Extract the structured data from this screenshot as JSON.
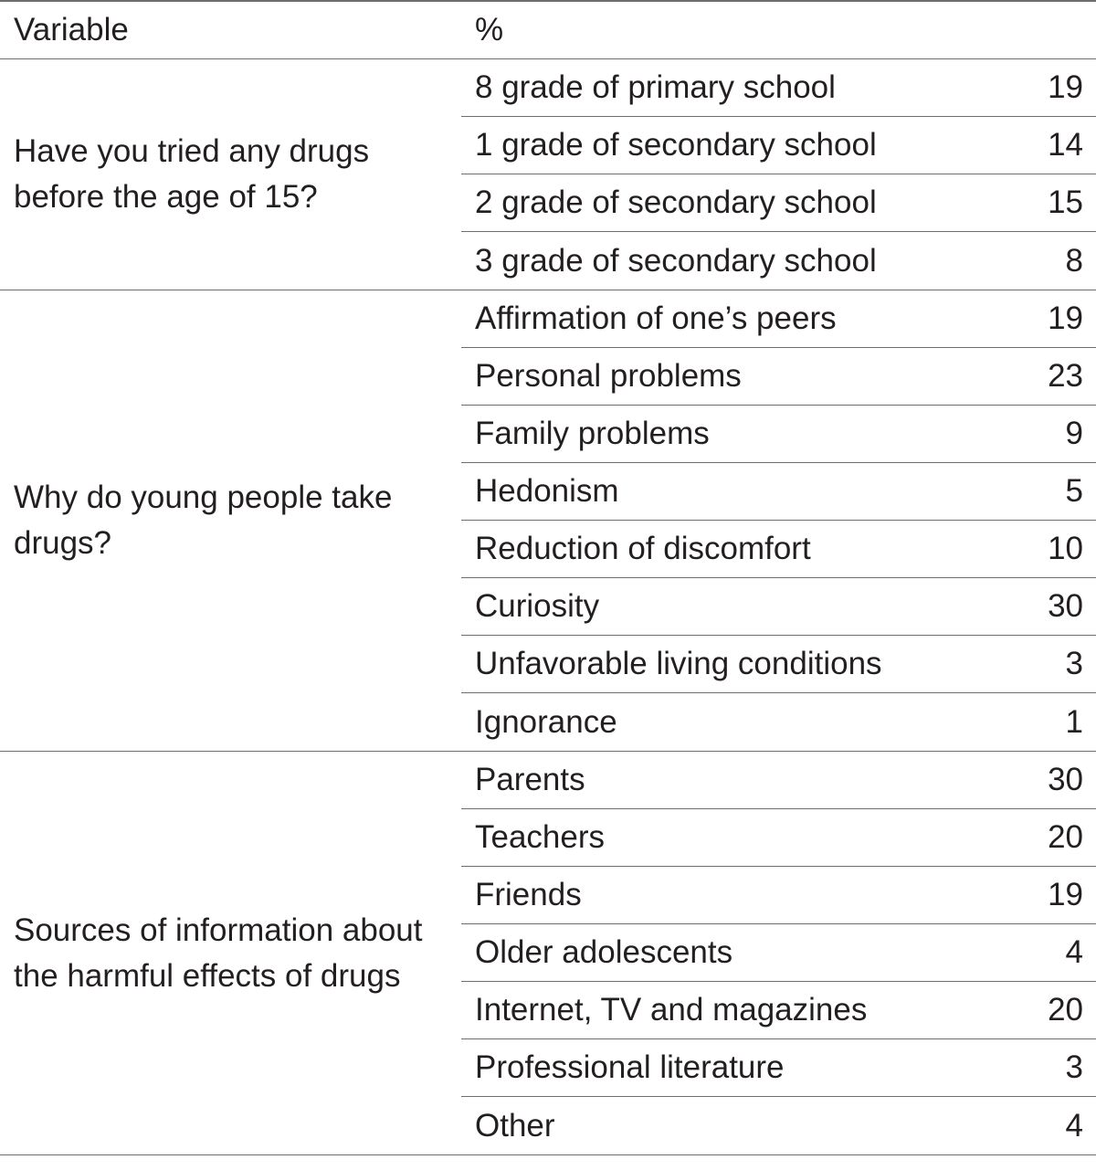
{
  "header": {
    "variable_label": "Variable",
    "percent_label": "%"
  },
  "groups": [
    {
      "variable": "Have you tried any drugs before the age of 15?",
      "rows": [
        {
          "label": "8 grade of primary school",
          "value": "19"
        },
        {
          "label": "1 grade of secondary school",
          "value": "14"
        },
        {
          "label": "2 grade of secondary school",
          "value": "15"
        },
        {
          "label": "3 grade of secondary school",
          "value": "8"
        }
      ]
    },
    {
      "variable": "Why do young people take drugs?",
      "rows": [
        {
          "label": "Affirmation of one’s peers",
          "value": "19"
        },
        {
          "label": "Personal problems",
          "value": "23"
        },
        {
          "label": "Family problems",
          "value": "9"
        },
        {
          "label": "Hedonism",
          "value": "5"
        },
        {
          "label": "Reduction of discomfort",
          "value": "10"
        },
        {
          "label": "Curiosity",
          "value": "30"
        },
        {
          "label": "Unfavorable living conditions",
          "value": "3"
        },
        {
          "label": "Ignorance",
          "value": "1"
        }
      ]
    },
    {
      "variable": "Sources of information about the harmful effects of drugs",
      "rows": [
        {
          "label": "Parents",
          "value": "30"
        },
        {
          "label": "Teachers",
          "value": "20"
        },
        {
          "label": "Friends",
          "value": "19"
        },
        {
          "label": "Older adolescents",
          "value": "4"
        },
        {
          "label": "Internet, TV and magazines",
          "value": "20"
        },
        {
          "label": "Professional literature",
          "value": "3"
        },
        {
          "label": "Other",
          "value": "4"
        }
      ]
    }
  ]
}
